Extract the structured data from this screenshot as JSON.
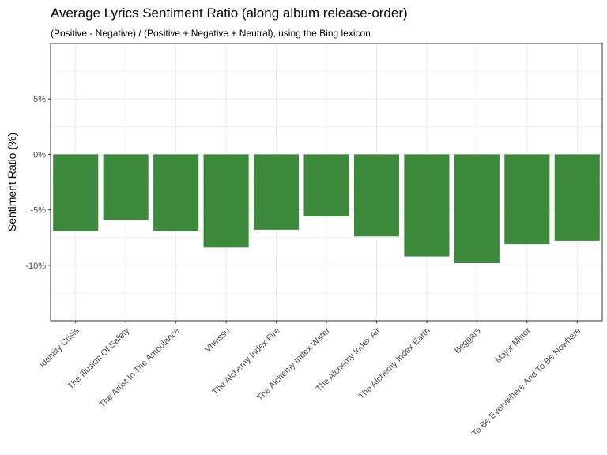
{
  "chart_data": {
    "type": "bar",
    "title": "Average Lyrics Sentiment Ratio (along album release-order)",
    "subtitle": "(Positive - Negative) / (Positive + Negative + Neutral), using the Bing lexicon",
    "xlabel": "",
    "ylabel": "Sentiment Ratio (%)",
    "categories": [
      "Identity Crisis",
      "The Illusion Of Safety",
      "The Artist In The Ambulance",
      "Vheissu",
      "The Alchemy Index Fire",
      "The Alchemy Index Water",
      "The Alchemy Index Air",
      "The Alchemy Index Earth",
      "Beggars",
      "Major Minor",
      "To Be Everywhere And To Be Nowhere"
    ],
    "values": [
      -6.9,
      -5.9,
      -6.9,
      -8.4,
      -6.8,
      -5.6,
      -7.4,
      -9.2,
      -9.8,
      -8.1,
      -7.8
    ],
    "ylim": [
      -15,
      10
    ],
    "yticks": [
      -10,
      -5,
      0,
      5
    ],
    "ytick_labels": [
      "-10%",
      "-5%",
      "0%",
      "5%"
    ],
    "grid": true,
    "legend": "none",
    "bar_color": "#3d8a3d",
    "grid_color": "#ebebeb"
  }
}
